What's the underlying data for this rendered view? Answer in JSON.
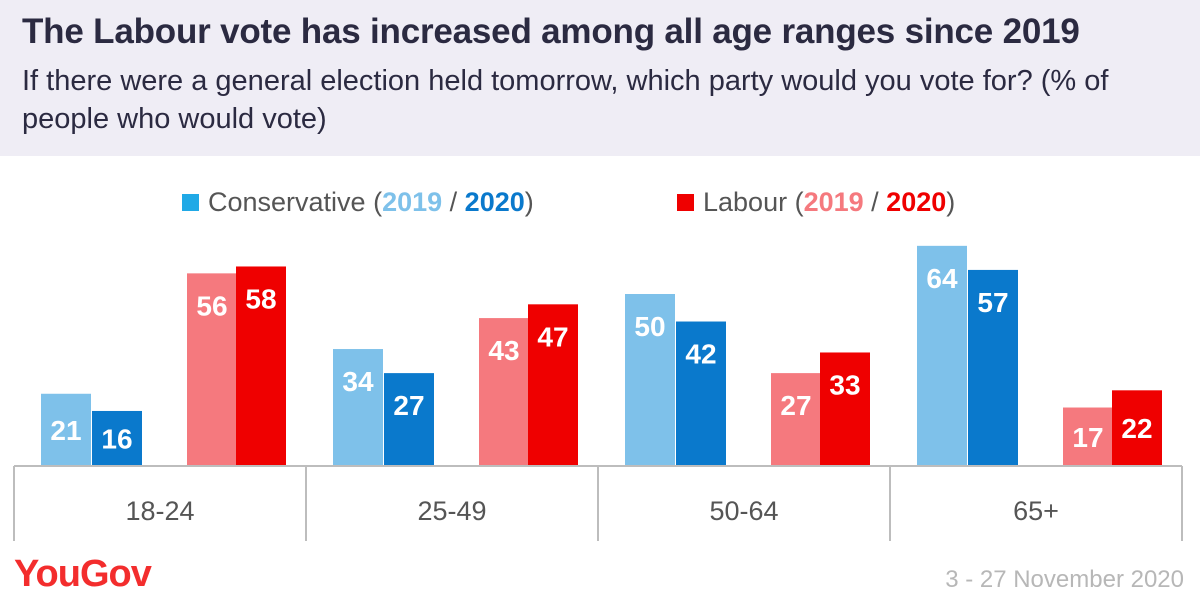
{
  "header": {
    "title": "The Labour vote has increased among all age ranges since 2019",
    "subtitle": "If there were a general election held tomorrow, which party would you vote for? (% of people who would vote)"
  },
  "legend": {
    "conservative": {
      "name": "Conservative",
      "open": " (",
      "y2019": "2019",
      "sep": " / ",
      "y2020": "2020",
      "close": ")"
    },
    "labour": {
      "name": "Labour",
      "open": " (",
      "y2019": "2019",
      "sep": " / ",
      "y2020": "2020",
      "close": ")"
    }
  },
  "footer": {
    "brand": "YouGov",
    "date": "3 - 27 November 2020"
  },
  "colors": {
    "conservative_2019": "#7ec1ea",
    "conservative_2020": "#0a79cc",
    "labour_2019": "#f5797e",
    "labour_2020": "#ef0000"
  },
  "chart_data": {
    "type": "bar",
    "title": "The Labour vote has increased among all age ranges since 2019",
    "subtitle": "If there were a general election held tomorrow, which party would you vote for? (% of people who would vote)",
    "categories": [
      "18-24",
      "25-49",
      "50-64",
      "65+"
    ],
    "series": [
      {
        "name": "Conservative 2019",
        "color": "#7ec1ea",
        "values": [
          21,
          34,
          50,
          64
        ]
      },
      {
        "name": "Conservative 2020",
        "color": "#0a79cc",
        "values": [
          16,
          27,
          42,
          57
        ]
      },
      {
        "name": "Labour 2019",
        "color": "#f5797e",
        "values": [
          56,
          43,
          27,
          17
        ]
      },
      {
        "name": "Labour 2020",
        "color": "#ef0000",
        "values": [
          58,
          47,
          33,
          22
        ]
      }
    ],
    "ylim": [
      0,
      70
    ],
    "grid": false,
    "legend_position": "top",
    "data_labels": true
  }
}
